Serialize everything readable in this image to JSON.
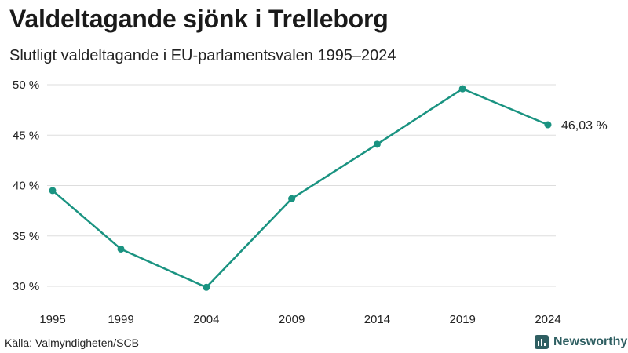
{
  "header": {
    "title": "Valdeltagande sjönk i Trelleborg",
    "subtitle": "Slutligt valdeltagande i EU-parlamentsvalen 1995–2024"
  },
  "footer": {
    "source": "Källa: Valmyndigheten/SCB",
    "brand": "Newsworthy"
  },
  "colors": {
    "line": "#1a9381",
    "grid": "#dddddd",
    "brand": "#2f5f62"
  },
  "chart_data": {
    "type": "line",
    "title": "Valdeltagande sjönk i Trelleborg",
    "subtitle": "Slutligt valdeltagande i EU-parlamentsvalen 1995–2024",
    "xlabel": "",
    "ylabel": "",
    "x": [
      1995,
      1999,
      2004,
      2009,
      2014,
      2019,
      2024
    ],
    "x_tick_labels": [
      "1995",
      "1999",
      "2004",
      "2009",
      "2014",
      "2019",
      "2024"
    ],
    "series": [
      {
        "name": "Valdeltagande",
        "values": [
          39.5,
          33.7,
          29.9,
          38.7,
          44.1,
          49.6,
          46.03
        ]
      }
    ],
    "ylim": [
      30,
      50
    ],
    "y_ticks": [
      30,
      35,
      40,
      45,
      50
    ],
    "y_tick_labels": [
      "30 %",
      "35 %",
      "40 %",
      "45 %",
      "50 %"
    ],
    "grid": true,
    "end_label": "46,03 %"
  }
}
